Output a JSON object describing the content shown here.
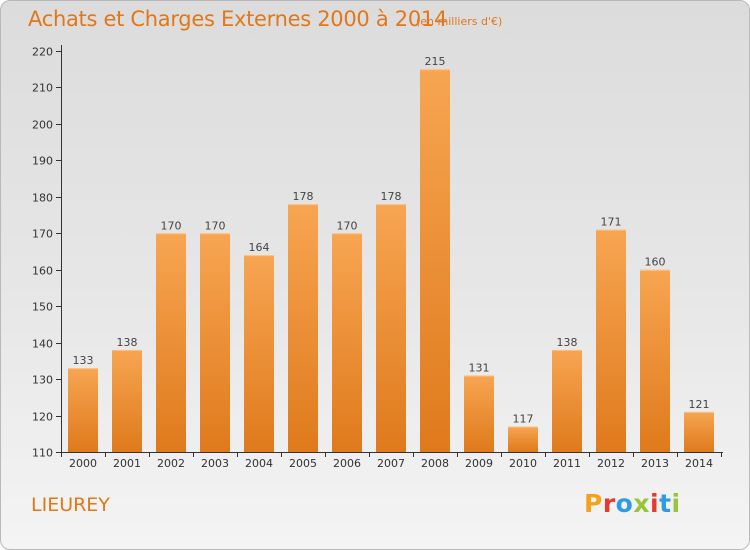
{
  "header": {
    "title": "Achats et Charges Externes 2000 à 2014",
    "subtitle": "(en milliers d'€)"
  },
  "footer": {
    "commune": "LIEUREY",
    "brand": "Proxiti",
    "brand_letters": [
      {
        "ch": "P",
        "color": "#f5a21b"
      },
      {
        "ch": "r",
        "color": "#e53a2f"
      },
      {
        "ch": "o",
        "color": "#2f9be0"
      },
      {
        "ch": "x",
        "color": "#9ac43a"
      },
      {
        "ch": "i",
        "color": "#e53a2f"
      },
      {
        "ch": "t",
        "color": "#2f9be0"
      },
      {
        "ch": "i",
        "color": "#9ac43a"
      }
    ]
  },
  "colors": {
    "bar_top": "#f7a552",
    "bar_bottom": "#df7a1c",
    "accent": "#e0781a",
    "axis": "#333333"
  },
  "chart_data": {
    "type": "bar",
    "categories": [
      "2000",
      "2001",
      "2002",
      "2003",
      "2004",
      "2005",
      "2006",
      "2007",
      "2008",
      "2009",
      "2010",
      "2011",
      "2012",
      "2013",
      "2014"
    ],
    "values": [
      133,
      138,
      170,
      170,
      164,
      178,
      170,
      178,
      215,
      131,
      117,
      138,
      171,
      160,
      121
    ],
    "ylim": [
      110,
      220
    ],
    "yticks": [
      110,
      120,
      130,
      140,
      150,
      160,
      170,
      180,
      190,
      200,
      210,
      220
    ],
    "title": "Achats et Charges Externes 2000 à 2014",
    "xlabel": "",
    "ylabel": "",
    "grid": false,
    "legend": "none"
  }
}
